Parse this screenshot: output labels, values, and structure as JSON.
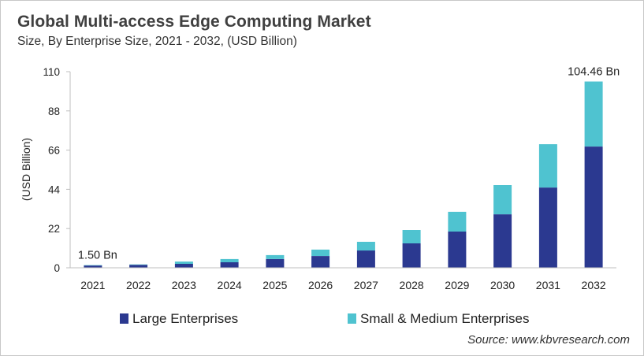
{
  "header": {
    "title": "Global Multi-access Edge Computing Market",
    "subtitle": "Size, By Enterprise Size, 2021 - 2032, (USD Billion)"
  },
  "source": "Source: www.kbvresearch.com",
  "chart_data": {
    "type": "bar",
    "stacked": true,
    "title": "Global Multi-access Edge Computing Market",
    "subtitle": "Size, By Enterprise Size, 2021 - 2032, (USD Billion)",
    "xlabel": "",
    "ylabel": "(USD Billion)",
    "ylim": [
      0,
      110
    ],
    "yticks": [
      0,
      22,
      44,
      66,
      88,
      110
    ],
    "grid": false,
    "legend_position": "bottom",
    "categories": [
      "2021",
      "2022",
      "2023",
      "2024",
      "2025",
      "2026",
      "2027",
      "2028",
      "2029",
      "2030",
      "2031",
      "2032"
    ],
    "series": [
      {
        "name": "Large Enterprises",
        "color": "#2b3990",
        "values": [
          1.3,
          1.7,
          2.2,
          3.1,
          4.9,
          6.6,
          9.7,
          13.7,
          20.3,
          30.0,
          45.0,
          68.0
        ]
      },
      {
        "name": "Small & Medium Enterprises",
        "color": "#4fc3d0",
        "values": [
          0.2,
          0.2,
          1.3,
          1.8,
          2.2,
          3.6,
          4.9,
          7.5,
          11.1,
          16.4,
          24.3,
          36.46
        ]
      }
    ],
    "annotations": [
      {
        "category": "2021",
        "text": "1.50 Bn"
      },
      {
        "category": "2032",
        "text": "104.46 Bn"
      }
    ]
  }
}
